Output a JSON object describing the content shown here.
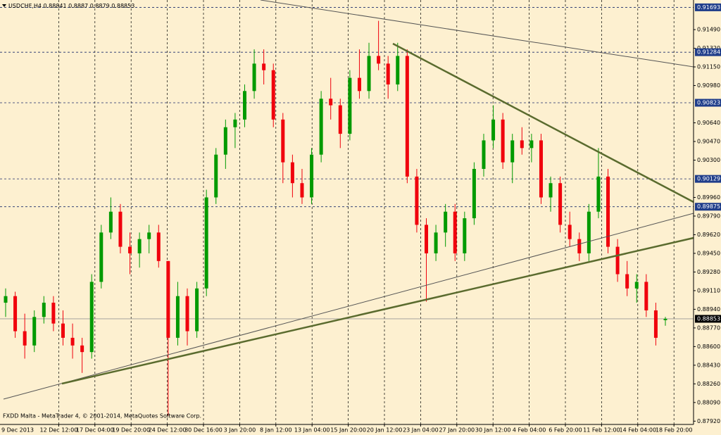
{
  "chart_data": {
    "type": "candlestick",
    "symbol": "USDCHF,H4",
    "up_color": "#009a00",
    "down_color": "#f0000c",
    "ylim": [
      0.8789,
      0.9176
    ],
    "yticks": [
      {
        "value": 0.9149,
        "label": "0.91490"
      },
      {
        "value": 0.9132,
        "label": "0.91320"
      },
      {
        "value": 0.9115,
        "label": "0.91150"
      },
      {
        "value": 0.9098,
        "label": "0.90980"
      },
      {
        "value": 0.9064,
        "label": "0.90640"
      },
      {
        "value": 0.9047,
        "label": "0.90470"
      },
      {
        "value": 0.903,
        "label": "0.90300"
      },
      {
        "value": 0.8996,
        "label": "0.89960"
      },
      {
        "value": 0.8979,
        "label": "0.89790"
      },
      {
        "value": 0.8962,
        "label": "0.89620"
      },
      {
        "value": 0.8945,
        "label": "0.89450"
      },
      {
        "value": 0.8928,
        "label": "0.89280"
      },
      {
        "value": 0.8911,
        "label": "0.89110"
      },
      {
        "value": 0.8894,
        "label": "0.88940"
      },
      {
        "value": 0.8877,
        "label": "0.88770"
      },
      {
        "value": 0.886,
        "label": "0.88600"
      },
      {
        "value": 0.8843,
        "label": "0.88430"
      },
      {
        "value": 0.8826,
        "label": "0.88260"
      },
      {
        "value": 0.8809,
        "label": "0.88090"
      },
      {
        "value": 0.8792,
        "label": "0.87920"
      }
    ],
    "levels": [
      0.91693,
      0.91284,
      0.90823,
      0.90129,
      0.89875
    ],
    "x_labels": [
      "9 Dec 2013",
      "12 Dec 12:00",
      "17 Dec 04:00",
      "19 Dec 20:00",
      "24 Dec 12:00",
      "30 Dec 16:00",
      "3 Jan 20:00",
      "8 Jan 12:00",
      "13 Jan 04:00",
      "15 Jan 20:00",
      "20 Jan 12:00",
      "23 Jan 04:00",
      "27 Jan 20:00",
      "30 Jan 12:00",
      "4 Feb 04:00",
      "6 Feb 20:00",
      "11 Feb 12:00",
      "14 Feb 04:00",
      "18 Feb 20:00"
    ],
    "footer": "FXDD Malta - MetaTrader 4, © 2001-2014, MetaQuotes Software Corp.",
    "ohlc": [
      [
        0.89,
        0.8913,
        0.8887,
        0.8906
      ],
      [
        0.8906,
        0.891,
        0.8868,
        0.8874
      ],
      [
        0.8874,
        0.889,
        0.8849,
        0.8861
      ],
      [
        0.8861,
        0.8893,
        0.8855,
        0.8887
      ],
      [
        0.8887,
        0.8906,
        0.8881,
        0.89
      ],
      [
        0.89,
        0.8906,
        0.8874,
        0.8881
      ],
      [
        0.8881,
        0.8893,
        0.8861,
        0.8868
      ],
      [
        0.8868,
        0.8881,
        0.8849,
        0.8861
      ],
      [
        0.8861,
        0.8868,
        0.8836,
        0.8855
      ],
      [
        0.8855,
        0.8926,
        0.8849,
        0.8919
      ],
      [
        0.8919,
        0.8971,
        0.8913,
        0.8964
      ],
      [
        0.8964,
        0.8996,
        0.8958,
        0.8983
      ],
      [
        0.8983,
        0.899,
        0.8945,
        0.8951
      ],
      [
        0.8951,
        0.8964,
        0.8926,
        0.8945
      ],
      [
        0.8945,
        0.8964,
        0.8932,
        0.8958
      ],
      [
        0.8958,
        0.8971,
        0.8945,
        0.8964
      ],
      [
        0.8964,
        0.8971,
        0.8932,
        0.8938
      ],
      [
        0.8938,
        0.8938,
        0.8797,
        0.8868
      ],
      [
        0.8868,
        0.8919,
        0.8861,
        0.8906
      ],
      [
        0.8906,
        0.8913,
        0.8861,
        0.8874
      ],
      [
        0.8874,
        0.8919,
        0.8868,
        0.8913
      ],
      [
        0.8913,
        0.9003,
        0.8906,
        0.8996
      ],
      [
        0.8996,
        0.9041,
        0.899,
        0.9035
      ],
      [
        0.9035,
        0.9067,
        0.9022,
        0.906
      ],
      [
        0.906,
        0.9073,
        0.9041,
        0.9067
      ],
      [
        0.9067,
        0.9099,
        0.906,
        0.9093
      ],
      [
        0.9093,
        0.9131,
        0.9086,
        0.9118
      ],
      [
        0.9118,
        0.9131,
        0.9099,
        0.9112
      ],
      [
        0.9112,
        0.9118,
        0.906,
        0.9067
      ],
      [
        0.9067,
        0.9073,
        0.9009,
        0.9028
      ],
      [
        0.9028,
        0.9035,
        0.8996,
        0.9009
      ],
      [
        0.9009,
        0.9022,
        0.899,
        0.8996
      ],
      [
        0.8996,
        0.9041,
        0.899,
        0.9035
      ],
      [
        0.9035,
        0.9093,
        0.9028,
        0.9086
      ],
      [
        0.9086,
        0.9105,
        0.9067,
        0.908
      ],
      [
        0.908,
        0.9086,
        0.9041,
        0.9054
      ],
      [
        0.9054,
        0.9112,
        0.9048,
        0.9105
      ],
      [
        0.9105,
        0.9131,
        0.9086,
        0.9093
      ],
      [
        0.9093,
        0.9137,
        0.9086,
        0.9125
      ],
      [
        0.9125,
        0.9157,
        0.9112,
        0.9118
      ],
      [
        0.9118,
        0.9125,
        0.9086,
        0.9099
      ],
      [
        0.9099,
        0.9137,
        0.9093,
        0.9125
      ],
      [
        0.9125,
        0.9131,
        0.9009,
        0.9015
      ],
      [
        0.9015,
        0.9022,
        0.8964,
        0.8971
      ],
      [
        0.8971,
        0.8977,
        0.8901,
        0.8945
      ],
      [
        0.8945,
        0.8971,
        0.8938,
        0.8964
      ],
      [
        0.8964,
        0.899,
        0.8951,
        0.8983
      ],
      [
        0.8983,
        0.899,
        0.8938,
        0.8945
      ],
      [
        0.8945,
        0.8983,
        0.8938,
        0.8977
      ],
      [
        0.8977,
        0.9028,
        0.8971,
        0.9022
      ],
      [
        0.9022,
        0.9054,
        0.9015,
        0.9048
      ],
      [
        0.9048,
        0.908,
        0.9041,
        0.9067
      ],
      [
        0.9067,
        0.9073,
        0.9022,
        0.9028
      ],
      [
        0.9028,
        0.9054,
        0.9009,
        0.9048
      ],
      [
        0.9048,
        0.906,
        0.9035,
        0.9041
      ],
      [
        0.9041,
        0.9054,
        0.9028,
        0.9048
      ],
      [
        0.9048,
        0.9054,
        0.899,
        0.8996
      ],
      [
        0.8996,
        0.9015,
        0.8983,
        0.9009
      ],
      [
        0.9009,
        0.9015,
        0.8964,
        0.8971
      ],
      [
        0.8971,
        0.8983,
        0.8951,
        0.8958
      ],
      [
        0.8958,
        0.8964,
        0.8938,
        0.8945
      ],
      [
        0.8945,
        0.899,
        0.8938,
        0.8983
      ],
      [
        0.8983,
        0.9041,
        0.8977,
        0.9015
      ],
      [
        0.9015,
        0.9022,
        0.8945,
        0.8951
      ],
      [
        0.8951,
        0.8958,
        0.8919,
        0.8926
      ],
      [
        0.8926,
        0.8938,
        0.8906,
        0.8913
      ],
      [
        0.8913,
        0.8926,
        0.89,
        0.8919
      ],
      [
        0.8919,
        0.8926,
        0.8887,
        0.8893
      ],
      [
        0.8893,
        0.89,
        0.8861,
        0.8868
      ],
      [
        0.88841,
        0.8887,
        0.8879,
        0.88853
      ]
    ]
  }
}
